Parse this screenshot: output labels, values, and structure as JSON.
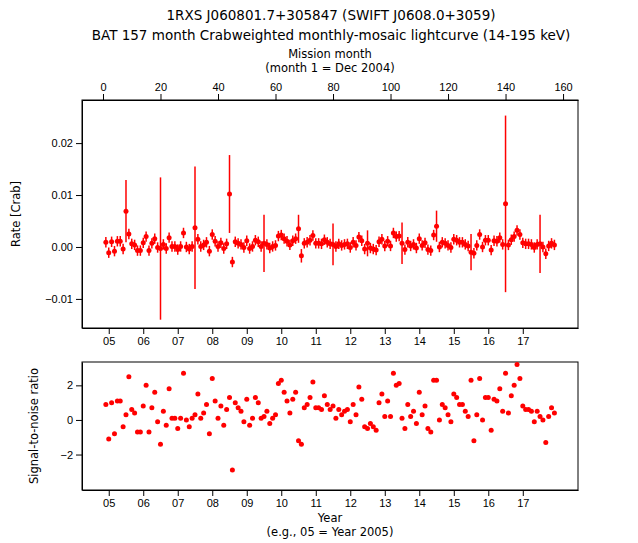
{
  "chart_data": [
    {
      "type": "scatter",
      "title": [
        "1RXS J060801.7+305847 (SWIFT J0608.0+3059)",
        "BAT 157 month Crabweighted monthly-mosaic lightcurve (14-195 keV)"
      ],
      "x2_label": [
        "Mission month",
        "(month 1 = Dec 2004)"
      ],
      "y_label": "Rate [Crab]",
      "color": "#ff0000",
      "marker": "circle",
      "x": [
        1,
        2,
        3,
        4,
        5,
        6,
        7,
        8,
        9,
        10,
        11,
        12,
        13,
        14,
        15,
        16,
        17,
        18,
        19,
        20,
        21,
        22,
        23,
        24,
        25,
        26,
        27,
        28,
        29,
        30,
        31,
        32,
        33,
        34,
        35,
        36,
        37,
        38,
        39,
        40,
        41,
        42,
        43,
        44,
        45,
        46,
        47,
        48,
        49,
        50,
        51,
        52,
        53,
        54,
        55,
        56,
        57,
        58,
        59,
        60,
        61,
        62,
        63,
        64,
        65,
        66,
        67,
        68,
        69,
        70,
        71,
        72,
        73,
        74,
        75,
        76,
        77,
        78,
        79,
        80,
        81,
        82,
        83,
        84,
        85,
        86,
        87,
        88,
        89,
        90,
        91,
        92,
        93,
        94,
        95,
        96,
        97,
        98,
        99,
        100,
        101,
        102,
        103,
        104,
        105,
        106,
        107,
        108,
        109,
        110,
        111,
        112,
        113,
        114,
        115,
        116,
        117,
        118,
        119,
        120,
        121,
        122,
        123,
        124,
        125,
        126,
        127,
        128,
        129,
        130,
        131,
        132,
        133,
        134,
        135,
        136,
        137,
        138,
        139,
        140,
        141,
        142,
        143,
        144,
        145,
        146,
        147,
        148,
        149,
        150,
        151,
        152,
        153,
        154,
        155,
        156,
        157
      ],
      "values": [
        0.0009,
        -0.0011,
        0.001,
        -0.0008,
        0.0011,
        0.0011,
        -0.0004,
        0.0069,
        0.0025,
        0.0006,
        0.0004,
        -0.0007,
        -0.0007,
        0.0008,
        0.002,
        -0.0007,
        0.0007,
        0.0016,
        -0.0001,
        -0.0003,
        0.0005,
        -0.0003,
        0.0018,
        0.0001,
        0.0001,
        -0.0005,
        0.0001,
        0.0027,
        0,
        -0.0004,
        0.0001,
        0.0037,
        0.0015,
        0.0001,
        0.0004,
        0.0009,
        -0.0008,
        0.0024,
        0.0011,
        0.0001,
        0.0008,
        -0.0003,
        0.0006,
        0.0102,
        -0.0029,
        0.001,
        0.0007,
        0.0005,
        -0.0001,
        0.0012,
        -0.0003,
        0.0001,
        0.0013,
        0.001,
        0.0001,
        0.0007,
        0.0005,
        -0.0002,
        0.0001,
        0.0003,
        0.0021,
        0.0023,
        0.0016,
        0.0011,
        0.0004,
        0.0012,
        0.0016,
        0.0035,
        -0.0017,
        0.0007,
        0.0009,
        0.0013,
        0.0022,
        0.0007,
        0.0007,
        0.0006,
        0.0014,
        0.0009,
        0.0006,
        0.0005,
        0.0001,
        0.0006,
        0.0003,
        0.0005,
        0.0006,
        -0.0001,
        0.0009,
        0.0003,
        0.0019,
        0.0012,
        -0.0004,
        0.0007,
        -0.0002,
        -0.0004,
        -0.0006,
        0.001,
        0.0015,
        0.0002,
        0.0011,
        0.0002,
        0.0027,
        0.002,
        0.0021,
        0.0007,
        -0.0005,
        0.0009,
        0.0002,
        0.0005,
        -0.0002,
        0.0016,
        0.0003,
        0.0008,
        -0.0005,
        -0.0007,
        0.0023,
        0.004,
        0,
        0.0009,
        0.0007,
        0.0003,
        -0.0001,
        0.0015,
        0.0013,
        0.0009,
        0.0009,
        0.0005,
        0.0002,
        -0.001,
        -0.0012,
        0.0003,
        0.0024,
        0,
        0.0013,
        0.0013,
        -0.0006,
        0.0012,
        0.0011,
        0.0018,
        0.0005,
        0.0083,
        0.0004,
        0.0014,
        0.002,
        0.0032,
        0.0024,
        0.0008,
        0.0006,
        0.0006,
        0.0005,
        -0.0001,
        0.0005,
        0.0006,
        0,
        -0.0013,
        0.0002,
        0.0007,
        0.0004
      ],
      "errors": [
        0.001,
        0.001,
        0.001,
        0.001,
        0.001,
        0.001,
        0.001,
        0.006,
        0.001,
        0.001,
        0.001,
        0.001,
        0.001,
        0.001,
        0.001,
        0.001,
        0.001,
        0.001,
        0.001,
        0.0137,
        0.001,
        0.001,
        0.001,
        0.001,
        0.001,
        0.001,
        0.001,
        0.001,
        0.001,
        0.001,
        0.001,
        0.0118,
        0.001,
        0.001,
        0.001,
        0.001,
        0.001,
        0.001,
        0.001,
        0.001,
        0.001,
        0.001,
        0.001,
        0.0075,
        0.001,
        0.001,
        0.001,
        0.001,
        0.001,
        0.001,
        0.001,
        0.001,
        0.001,
        0.001,
        0.001,
        0.0055,
        0.001,
        0.001,
        0.001,
        0.001,
        0.001,
        0.001,
        0.001,
        0.001,
        0.001,
        0.001,
        0.001,
        0.0027,
        0.0013,
        0.001,
        0.001,
        0.001,
        0.001,
        0.001,
        0.001,
        0.001,
        0.001,
        0.001,
        0.001,
        0.004,
        0.001,
        0.001,
        0.001,
        0.001,
        0.001,
        0.001,
        0.001,
        0.001,
        0.001,
        0.001,
        0.001,
        0.0025,
        0.001,
        0.001,
        0.001,
        0.001,
        0.001,
        0.001,
        0.001,
        0.001,
        0.001,
        0.001,
        0.001,
        0.004,
        0.001,
        0.001,
        0.001,
        0.001,
        0.001,
        0.001,
        0.001,
        0.001,
        0.001,
        0.001,
        0.001,
        0.003,
        0.001,
        0.001,
        0.001,
        0.001,
        0.001,
        0.001,
        0.001,
        0.001,
        0.001,
        0.001,
        0.001,
        0.0035,
        0.001,
        0.001,
        0.001,
        0.001,
        0.001,
        0.001,
        0.001,
        0.001,
        0.001,
        0.001,
        0.001,
        0.017,
        0.001,
        0.001,
        0.001,
        0.001,
        0.001,
        0.001,
        0.001,
        0.001,
        0.001,
        0.001,
        0.001,
        0.0056,
        0.001,
        0.001,
        0.001,
        0.001,
        0.001
      ],
      "xlim": [
        -7.3,
        165.2
      ],
      "xticks": [
        0,
        20,
        40,
        60,
        80,
        100,
        120,
        140,
        160
      ],
      "x2lim": [
        2004.225,
        2018.6
      ],
      "x2ticks": [
        {
          "value": 2005,
          "label": "05"
        },
        {
          "value": 2006,
          "label": "06"
        },
        {
          "value": 2007,
          "label": "07"
        },
        {
          "value": 2008,
          "label": "08"
        },
        {
          "value": 2009,
          "label": "09"
        },
        {
          "value": 2010,
          "label": "10"
        },
        {
          "value": 2011,
          "label": "11"
        },
        {
          "value": 2012,
          "label": "12"
        },
        {
          "value": 2013,
          "label": "13"
        },
        {
          "value": 2014,
          "label": "14"
        },
        {
          "value": 2015,
          "label": "15"
        },
        {
          "value": 2016,
          "label": "16"
        },
        {
          "value": 2017,
          "label": "17"
        }
      ],
      "ylim": [
        -0.0156,
        0.0283
      ],
      "yticks": [
        {
          "value": -0.01,
          "label": "−0.01"
        },
        {
          "value": 0,
          "label": "0.00"
        },
        {
          "value": 0.01,
          "label": "0.01"
        },
        {
          "value": 0.02,
          "label": "0.02"
        }
      ]
    },
    {
      "type": "scatter",
      "x_label": [
        "Year",
        "(e.g., 05 = Year 2005)"
      ],
      "y_label": "Signal-to-noise ratio",
      "color": "#ff0000",
      "marker": "circle",
      "x": [
        1,
        2,
        3,
        4,
        5,
        6,
        7,
        8,
        9,
        10,
        11,
        12,
        13,
        14,
        15,
        16,
        17,
        18,
        19,
        20,
        21,
        22,
        23,
        24,
        25,
        26,
        27,
        28,
        29,
        30,
        31,
        32,
        33,
        34,
        35,
        36,
        37,
        38,
        39,
        40,
        41,
        42,
        43,
        44,
        45,
        46,
        47,
        48,
        49,
        50,
        51,
        52,
        53,
        54,
        55,
        56,
        57,
        58,
        59,
        60,
        61,
        62,
        63,
        64,
        65,
        66,
        67,
        68,
        69,
        70,
        71,
        72,
        73,
        74,
        75,
        76,
        77,
        78,
        79,
        80,
        81,
        82,
        83,
        84,
        85,
        86,
        87,
        88,
        89,
        90,
        91,
        92,
        93,
        94,
        95,
        96,
        97,
        98,
        99,
        100,
        101,
        102,
        103,
        104,
        105,
        106,
        107,
        108,
        109,
        110,
        111,
        112,
        113,
        114,
        115,
        116,
        117,
        118,
        119,
        120,
        121,
        122,
        123,
        124,
        125,
        126,
        127,
        128,
        129,
        130,
        131,
        132,
        133,
        134,
        135,
        136,
        137,
        138,
        139,
        140,
        141,
        142,
        143,
        144,
        145,
        146,
        147,
        148,
        149,
        150,
        151,
        152,
        153,
        154,
        155,
        156,
        157
      ],
      "values": [
        0.9,
        -1.1,
        1.0,
        -0.8,
        1.1,
        1.1,
        -0.4,
        0.3,
        2.5,
        0.6,
        0.4,
        -0.7,
        -0.7,
        0.8,
        2.0,
        -0.7,
        0.7,
        1.6,
        -0.1,
        -1.4,
        0.5,
        -0.3,
        1.8,
        0.1,
        0.1,
        -0.5,
        0.1,
        2.7,
        0.0,
        -0.4,
        0.1,
        0.3,
        1.5,
        0.1,
        0.4,
        0.9,
        -0.8,
        2.4,
        1.1,
        0.1,
        0.8,
        -0.3,
        0.6,
        1.3,
        -2.9,
        1.0,
        0.7,
        0.5,
        -0.1,
        1.2,
        -0.3,
        0.1,
        1.3,
        1.0,
        0.1,
        0.2,
        0.5,
        -0.2,
        0.1,
        0.3,
        2.1,
        2.3,
        1.6,
        1.1,
        0.4,
        1.2,
        1.6,
        -1.2,
        -1.4,
        0.7,
        0.9,
        1.3,
        2.2,
        0.7,
        0.7,
        0.6,
        1.4,
        0.9,
        0.6,
        0.8,
        0.1,
        0.6,
        0.3,
        0.5,
        0.6,
        -0.1,
        0.9,
        0.3,
        1.9,
        1.2,
        -0.4,
        -0.5,
        -0.2,
        -0.4,
        -0.6,
        1.0,
        1.5,
        0.2,
        1.1,
        0.2,
        2.7,
        2.0,
        2.1,
        0.1,
        -0.5,
        0.9,
        0.2,
        0.5,
        -0.2,
        1.6,
        0.3,
        0.8,
        -0.5,
        -0.7,
        2.3,
        2.3,
        0.0,
        0.9,
        0.7,
        0.3,
        -0.1,
        1.5,
        1.3,
        0.9,
        0.9,
        0.5,
        0.2,
        2.3,
        -1.2,
        0.3,
        2.4,
        0.0,
        1.3,
        1.3,
        -0.6,
        1.2,
        1.1,
        1.8,
        0.5,
        2.7,
        0.4,
        1.4,
        2.0,
        3.2,
        2.4,
        0.8,
        0.6,
        0.6,
        0.5,
        -0.1,
        0.5,
        0.2,
        0.0,
        -1.3,
        0.2,
        0.7,
        0.4
      ],
      "xlim": [
        -7.3,
        165.2
      ],
      "x2lim": [
        2004.225,
        2018.6
      ],
      "x2ticks": [
        {
          "value": 2005,
          "label": "05"
        },
        {
          "value": 2006,
          "label": "06"
        },
        {
          "value": 2007,
          "label": "07"
        },
        {
          "value": 2008,
          "label": "08"
        },
        {
          "value": 2009,
          "label": "09"
        },
        {
          "value": 2010,
          "label": "10"
        },
        {
          "value": 2011,
          "label": "11"
        },
        {
          "value": 2012,
          "label": "12"
        },
        {
          "value": 2013,
          "label": "13"
        },
        {
          "value": 2014,
          "label": "14"
        },
        {
          "value": 2015,
          "label": "15"
        },
        {
          "value": 2016,
          "label": "16"
        },
        {
          "value": 2017,
          "label": "17"
        }
      ],
      "ylim": [
        -4.05,
        3.35
      ],
      "yticks": [
        {
          "value": -2,
          "label": "−2"
        },
        0,
        2
      ]
    }
  ]
}
